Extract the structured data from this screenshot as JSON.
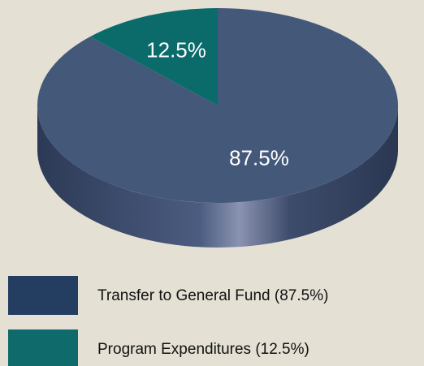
{
  "chart_data": {
    "type": "pie",
    "categories": [
      "Transfer to General Fund (87.5%)",
      "Program Expenditures (12.5%)"
    ],
    "values": [
      87.5,
      12.5
    ],
    "value_labels": [
      "87.5%",
      "12.5%"
    ],
    "colors": [
      "#44587a",
      "#0b6b6b"
    ],
    "legend_colors": [
      "#243e62",
      "#0f6b6b"
    ],
    "legend": "bottom-left"
  }
}
